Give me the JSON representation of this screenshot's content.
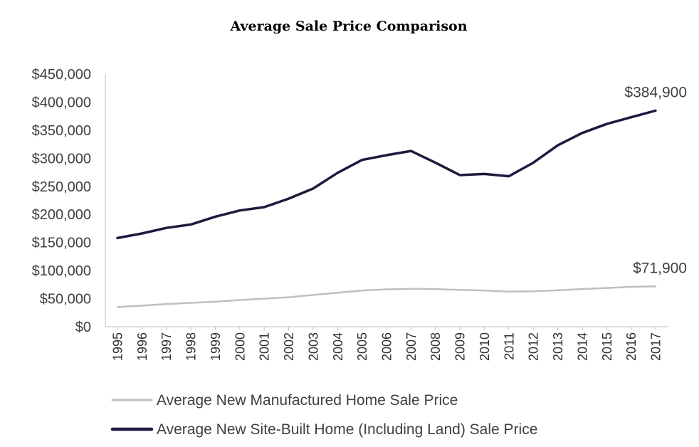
{
  "chart_data": {
    "type": "line",
    "title": "Average Sale Price Comparison",
    "xlabel": "",
    "ylabel": "",
    "x": [
      "1995",
      "1996",
      "1997",
      "1998",
      "1999",
      "2000",
      "2001",
      "2002",
      "2003",
      "2004",
      "2005",
      "2006",
      "2007",
      "2008",
      "2009",
      "2010",
      "2011",
      "2012",
      "2013",
      "2014",
      "2015",
      "2016",
      "2017"
    ],
    "ylim": [
      0,
      450000
    ],
    "yticks": [
      0,
      50000,
      100000,
      150000,
      200000,
      250000,
      300000,
      350000,
      400000,
      450000
    ],
    "ytick_labels": [
      "$0",
      "$50,000",
      "$100,000",
      "$150,000",
      "$200,000",
      "$250,000",
      "$300,000",
      "$350,000",
      "$400,000",
      "$450,000"
    ],
    "grid": false,
    "legend_position": "bottom-left",
    "series": [
      {
        "name": "Average New Manufactured Home Sale Price",
        "color": "#bfbfbf",
        "values": [
          35000,
          37500,
          40500,
          42500,
          44500,
          47500,
          50000,
          52500,
          56500,
          60500,
          64500,
          66500,
          67500,
          67000,
          65500,
          64500,
          62500,
          63000,
          65000,
          67000,
          69000,
          71000,
          71900
        ],
        "end_label": "$71,900"
      },
      {
        "name": "Average New Site-Built Home (Including Land) Sale Price",
        "color": "#1c1a3e",
        "values": [
          158000,
          166000,
          176000,
          182000,
          196000,
          207000,
          213000,
          228000,
          246000,
          274000,
          297000,
          305500,
          313000,
          292000,
          270000,
          272000,
          268000,
          292000,
          323000,
          345000,
          361000,
          373000,
          384900
        ],
        "end_label": "$384,900"
      }
    ]
  }
}
